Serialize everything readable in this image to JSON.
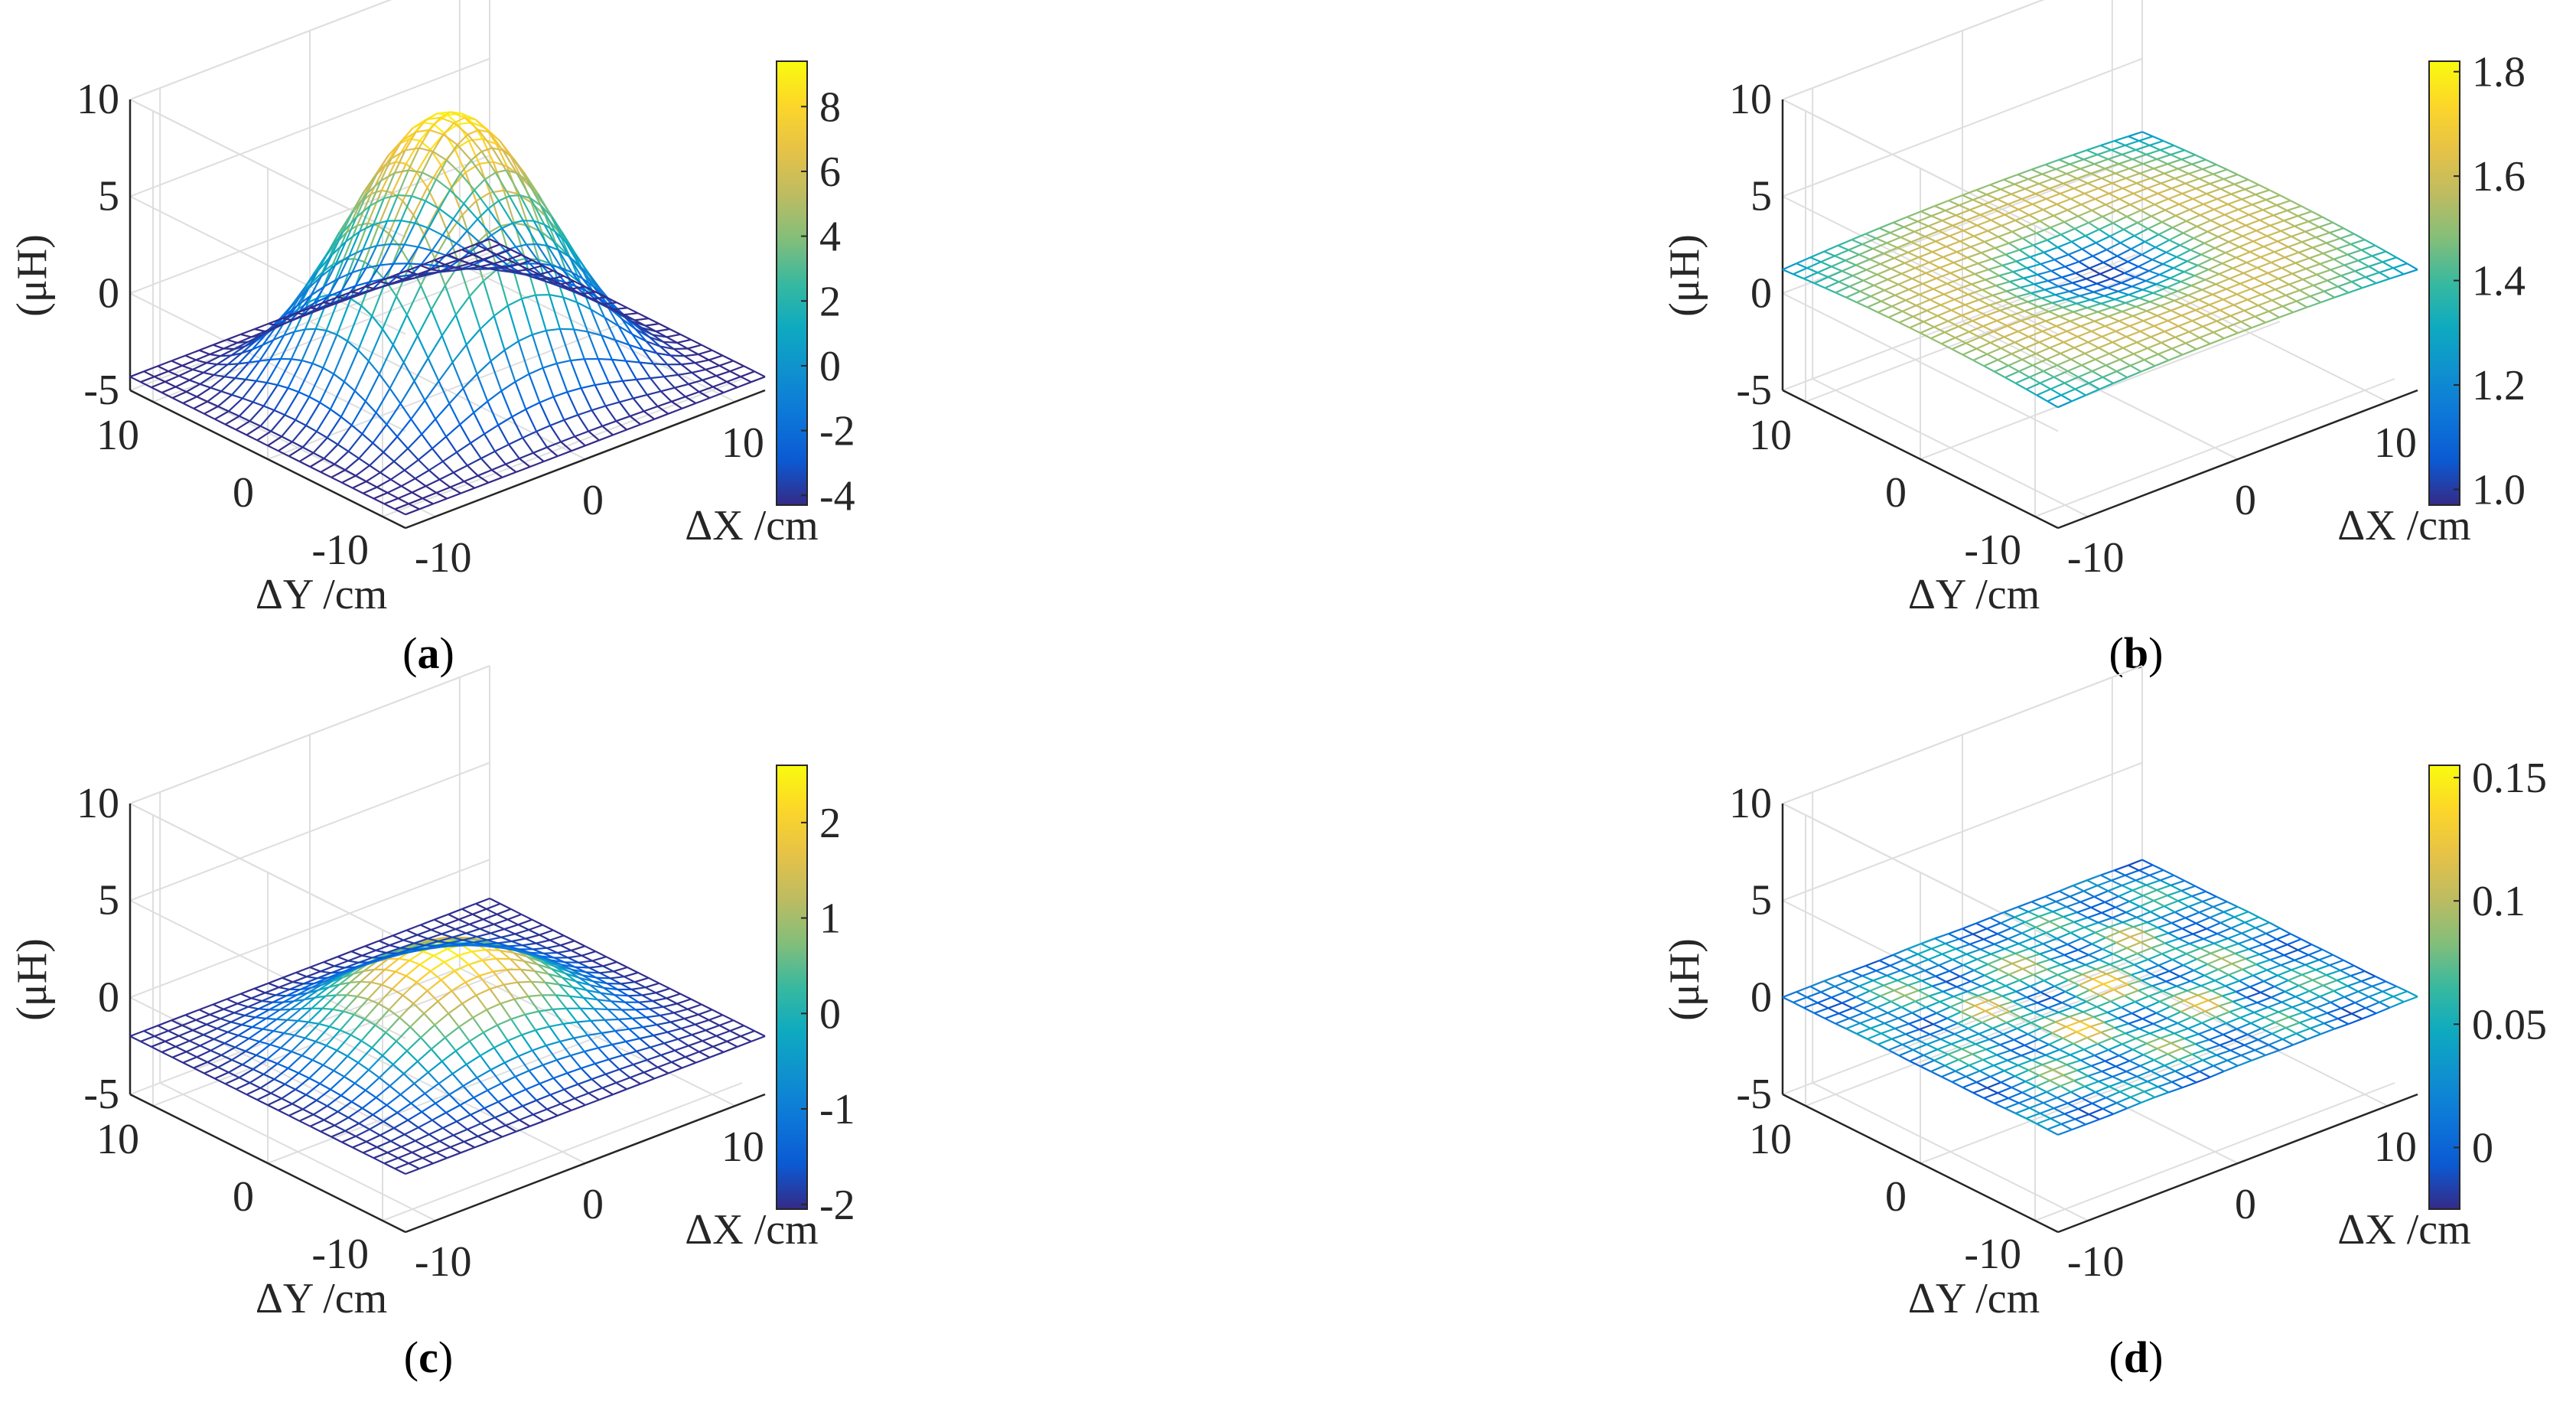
{
  "figure": {
    "panels": [
      {
        "id": "a",
        "label_open": "(",
        "label_letter": "a",
        "label_close": ")"
      },
      {
        "id": "b",
        "label_open": "(",
        "label_letter": "b",
        "label_close": ")"
      },
      {
        "id": "c",
        "label_open": "(",
        "label_letter": "c",
        "label_close": ")"
      },
      {
        "id": "d",
        "label_open": "(",
        "label_letter": "d",
        "label_close": ")"
      }
    ]
  },
  "chart_data": [
    {
      "panel": "a",
      "type": "surface",
      "surface_shape": "dome",
      "title": "",
      "xlabel": "ΔX /cm",
      "ylabel": "ΔY /cm",
      "zlabel": "(μH)",
      "xlim": [
        -12,
        12
      ],
      "ylim": [
        -12,
        12
      ],
      "zlim": [
        -5,
        10
      ],
      "x_ticks": [
        "-10",
        "0",
        "10"
      ],
      "y_ticks": [
        "10",
        "0",
        "-10"
      ],
      "z_ticks": [
        "10",
        "5",
        "0",
        "-5"
      ],
      "z_range": [
        -4.3,
        9.2
      ],
      "colorbar": {
        "min": -4.3,
        "max": 9.4,
        "ticks": [
          "8",
          "6",
          "4",
          "2",
          "0",
          "-2",
          "-4"
        ],
        "tick_values": [
          8,
          6,
          4,
          2,
          0,
          -2,
          -4
        ]
      },
      "colormap": "parula"
    },
    {
      "panel": "b",
      "type": "surface",
      "surface_shape": "ring",
      "title": "",
      "xlabel": "ΔX /cm",
      "ylabel": "ΔY /cm",
      "zlabel": "(μH)",
      "xlim": [
        -12,
        12
      ],
      "ylim": [
        -12,
        12
      ],
      "zlim": [
        -5,
        10
      ],
      "x_ticks": [
        "-10",
        "0",
        "10"
      ],
      "y_ticks": [
        "10",
        "0",
        "-10"
      ],
      "z_ticks": [
        "10",
        "5",
        "0",
        "-5"
      ],
      "z_range": [
        1.0,
        1.8
      ],
      "colorbar": {
        "min": 0.97,
        "max": 1.82,
        "ticks": [
          "1.8",
          "1.6",
          "1.4",
          "1.2",
          "1.0"
        ],
        "tick_values": [
          1.8,
          1.6,
          1.4,
          1.2,
          1.0
        ]
      },
      "colormap": "parula"
    },
    {
      "panel": "c",
      "type": "surface",
      "surface_shape": "dome",
      "title": "",
      "xlabel": "ΔX /cm",
      "ylabel": "ΔY /cm",
      "zlabel": "(μH)",
      "xlim": [
        -12,
        12
      ],
      "ylim": [
        -12,
        12
      ],
      "zlim": [
        -5,
        10
      ],
      "x_ticks": [
        "-10",
        "0",
        "10"
      ],
      "y_ticks": [
        "10",
        "0",
        "-10"
      ],
      "z_ticks": [
        "10",
        "5",
        "0",
        "-5"
      ],
      "z_range": [
        -2.0,
        2.5
      ],
      "colorbar": {
        "min": -2.05,
        "max": 2.6,
        "ticks": [
          "2",
          "1",
          "0",
          "-1",
          "-2"
        ],
        "tick_values": [
          2,
          1,
          0,
          -1,
          -2
        ]
      },
      "colormap": "parula"
    },
    {
      "panel": "d",
      "type": "surface",
      "surface_shape": "noisy",
      "title": "",
      "xlabel": "ΔX /cm",
      "ylabel": "ΔY /cm",
      "zlabel": "(μH)",
      "xlim": [
        -12,
        12
      ],
      "ylim": [
        -12,
        12
      ],
      "zlim": [
        -5,
        10
      ],
      "x_ticks": [
        "-10",
        "0",
        "10"
      ],
      "y_ticks": [
        "10",
        "0",
        "-10"
      ],
      "z_ticks": [
        "10",
        "5",
        "0",
        "-5"
      ],
      "z_range": [
        -0.02,
        0.15
      ],
      "colorbar": {
        "min": -0.025,
        "max": 0.155,
        "ticks": [
          "0.15",
          "0.1",
          "0.05",
          "0"
        ],
        "tick_values": [
          0.15,
          0.1,
          0.05,
          0
        ]
      },
      "colormap": "parula"
    }
  ]
}
